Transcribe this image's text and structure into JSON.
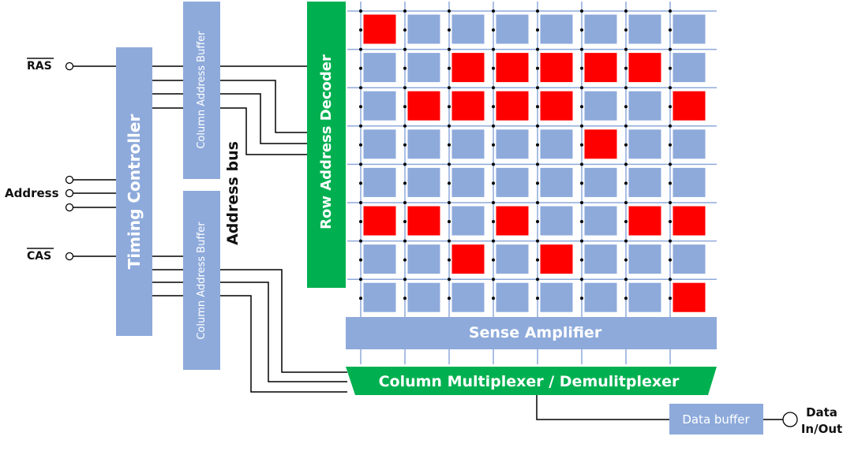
{
  "signals": {
    "ras": "RAS",
    "address": "Address",
    "cas": "CAS",
    "data": "Data",
    "in_out": "In/Out"
  },
  "blocks": {
    "timing_controller": "Timing Controller",
    "column_address_buffer_top": "Column Address Buffer",
    "column_address_buffer_bottom": "Column Address Buffer",
    "address_bus": "Address bus",
    "row_address_decoder": "Row Address Decoder",
    "sense_amplifier": "Sense Amplifier",
    "column_mux": "Column Multiplexer / Demulitplexer",
    "data_buffer": "Data buffer"
  },
  "memory_array": {
    "rows": 8,
    "cols": 8,
    "set_cells": [
      [
        1,
        0,
        0,
        0,
        0,
        0,
        0,
        0
      ],
      [
        0,
        0,
        1,
        1,
        1,
        1,
        1,
        0
      ],
      [
        0,
        1,
        1,
        1,
        1,
        0,
        0,
        1
      ],
      [
        0,
        0,
        0,
        0,
        0,
        1,
        0,
        0
      ],
      [
        0,
        0,
        0,
        0,
        0,
        0,
        0,
        0
      ],
      [
        1,
        1,
        0,
        1,
        0,
        0,
        1,
        1
      ],
      [
        0,
        0,
        1,
        0,
        1,
        0,
        0,
        0
      ],
      [
        0,
        0,
        0,
        0,
        0,
        0,
        0,
        1
      ]
    ]
  },
  "colors": {
    "block_blue": "#8eaadb",
    "block_green": "#00b050",
    "cell_on": "#ff0000",
    "cell_off": "#8eaadb",
    "grid_line": "#8eaadb",
    "wire": "#000000"
  }
}
